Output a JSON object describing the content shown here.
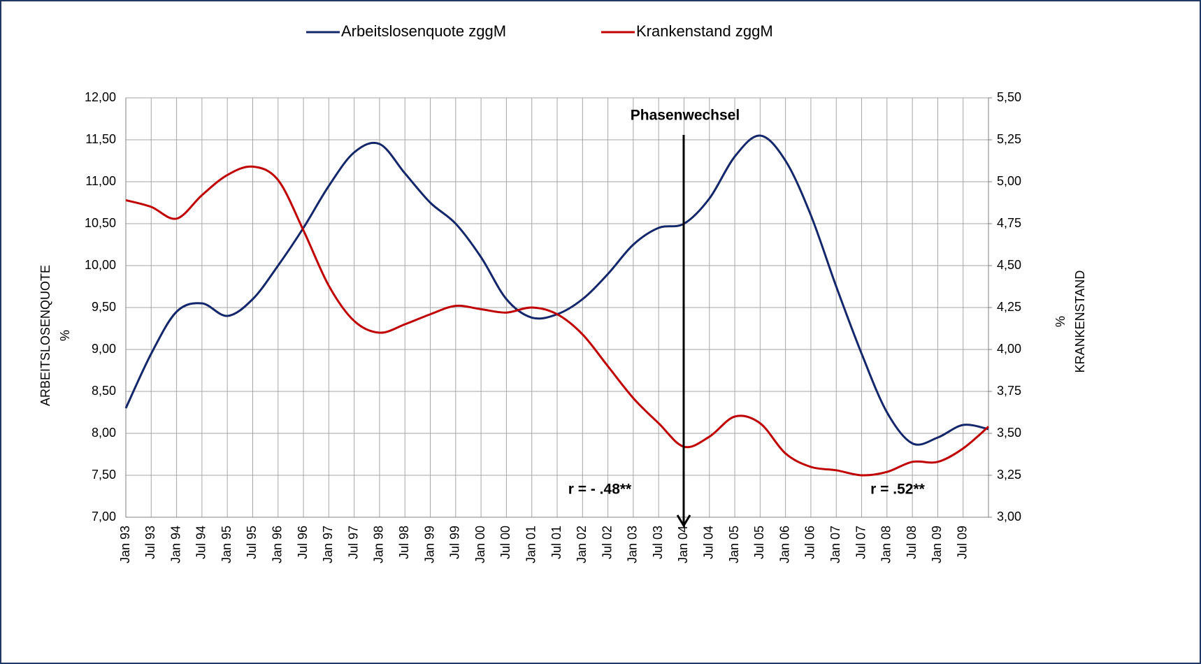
{
  "chart_data": {
    "type": "line",
    "legend": "top",
    "grid": true,
    "categories": [
      "Jan 93",
      "Jul 93",
      "Jan 94",
      "Jul 94",
      "Jan 95",
      "Jul 95",
      "Jan 96",
      "Jul 96",
      "Jan 97",
      "Jul 97",
      "Jan 98",
      "Jul 98",
      "Jan 99",
      "Jul 99",
      "Jan 00",
      "Jul 00",
      "Jan 01",
      "Jul 01",
      "Jan 02",
      "Jul 02",
      "Jan 03",
      "Jul 03",
      "Jan 04",
      "Jul 04",
      "Jan 05",
      "Jul 05",
      "Jan 06",
      "Jul 06",
      "Jan 07",
      "Jul 07",
      "Jan 08",
      "Jul 08",
      "Jan 09",
      "Jul 09",
      null
    ],
    "series": [
      {
        "name": "Arbeitslosenquote zggM",
        "color": "#14276b",
        "axis": "y",
        "values": [
          8.3,
          8.95,
          9.45,
          9.55,
          9.4,
          9.6,
          10.0,
          10.45,
          10.95,
          11.35,
          11.45,
          11.1,
          10.75,
          10.5,
          10.1,
          9.6,
          9.38,
          9.42,
          9.6,
          9.9,
          10.25,
          10.45,
          10.5,
          10.8,
          11.3,
          11.55,
          11.25,
          10.6,
          9.75,
          8.95,
          8.25,
          7.88,
          7.95,
          8.1,
          8.05
        ]
      },
      {
        "name": "Krankenstand zggM",
        "color": "#c00000",
        "axis": "y2",
        "values": [
          4.89,
          4.85,
          4.78,
          4.92,
          5.04,
          5.09,
          5.01,
          4.71,
          4.38,
          4.17,
          4.1,
          4.15,
          4.21,
          4.26,
          4.24,
          4.22,
          4.25,
          4.21,
          4.09,
          3.9,
          3.71,
          3.56,
          3.42,
          3.48,
          3.6,
          3.56,
          3.38,
          3.3,
          3.28,
          3.25,
          3.27,
          3.33,
          3.33,
          3.41,
          3.54
        ]
      }
    ],
    "ylabel": [
      "ARBEITSLOSENQUOTE",
      "%"
    ],
    "y2label": [
      "%",
      "KRANKENSTAND"
    ],
    "ylim": [
      7,
      12
    ],
    "yticks": [
      {
        "value": 7,
        "label": "7,00"
      },
      {
        "value": 7.5,
        "label": "7,50"
      },
      {
        "value": 8,
        "label": "8,00"
      },
      {
        "value": 8.5,
        "label": "8,50"
      },
      {
        "value": 9,
        "label": "9,00"
      },
      {
        "value": 9.5,
        "label": "9,50"
      },
      {
        "value": 10,
        "label": "10,00"
      },
      {
        "value": 10.5,
        "label": "10,50"
      },
      {
        "value": 11,
        "label": "11,00"
      },
      {
        "value": 11.5,
        "label": "11,50"
      },
      {
        "value": 12,
        "label": "12,00"
      }
    ],
    "y2lim": [
      3,
      5.5
    ],
    "y2ticks": [
      {
        "value": 3,
        "label": "3,00"
      },
      {
        "value": 3.25,
        "label": "3,25"
      },
      {
        "value": 3.5,
        "label": "3,50"
      },
      {
        "value": 3.75,
        "label": "3,75"
      },
      {
        "value": 4,
        "label": "4,00"
      },
      {
        "value": 4.25,
        "label": "4,25"
      },
      {
        "value": 4.5,
        "label": "4,50"
      },
      {
        "value": 4.75,
        "label": "4,75"
      },
      {
        "value": 5,
        "label": "5,00"
      },
      {
        "value": 5.25,
        "label": "5,25"
      },
      {
        "value": 5.5,
        "label": "5,50"
      }
    ],
    "annotations": [
      "Phasenwechsel",
      "r = - .48**",
      "r = .52**"
    ]
  }
}
